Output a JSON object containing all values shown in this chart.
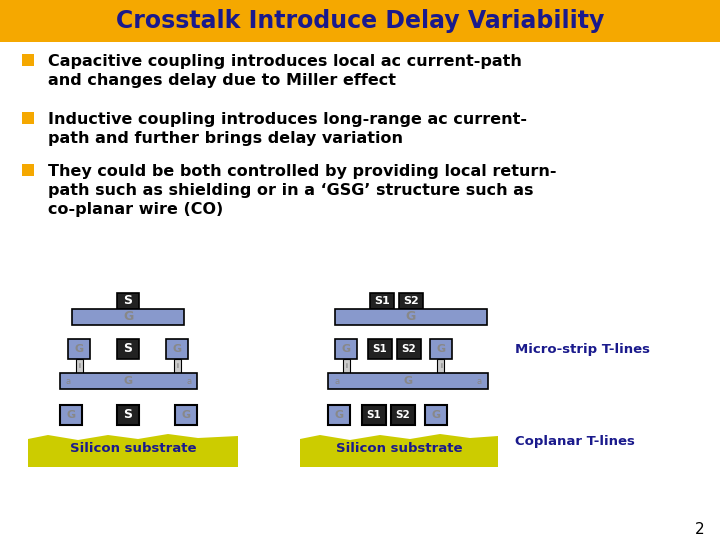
{
  "title": "Crosstalk Introduce Delay Variability",
  "title_bg": "#F5A800",
  "title_color": "#1a1a8c",
  "slide_bg": "#ffffff",
  "bullet_color": "#F5A800",
  "text_color": "#000000",
  "bullets": [
    "Capacitive coupling introduces local ac current-path\nand changes delay due to Miller effect",
    "Inductive coupling introduces long-range ac current-\npath and further brings delay variation",
    "They could be both controlled by providing local return-\npath such as shielding or in a ‘GSG’ structure such as\nco-planar wire (CO)"
  ],
  "micro_label": "Micro-strip T-lines",
  "coplanar_label": "Coplanar T-lines",
  "silicon_label": "Silicon substrate",
  "label_color": "#1a1a8c",
  "silicon_color": "#cccc00",
  "silicon_text_color": "#1a1a8c",
  "blue_fill": "#8899cc",
  "black_fill": "#222222",
  "gray_text": "#888888",
  "white_text": "#ffffff",
  "page_num": "2"
}
